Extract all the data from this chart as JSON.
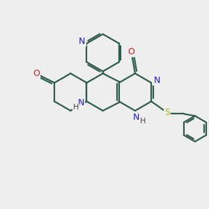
{
  "bg_color": "#eeeeee",
  "bond_color": "#2d5a4a",
  "n_color": "#1a1acc",
  "o_color": "#cc1a1a",
  "s_color": "#b8b800",
  "h_color": "#444444",
  "lw": 1.6,
  "figsize": [
    3.0,
    3.0
  ],
  "dpi": 100,
  "xlim": [
    0,
    10
  ],
  "ylim": [
    0,
    10
  ]
}
